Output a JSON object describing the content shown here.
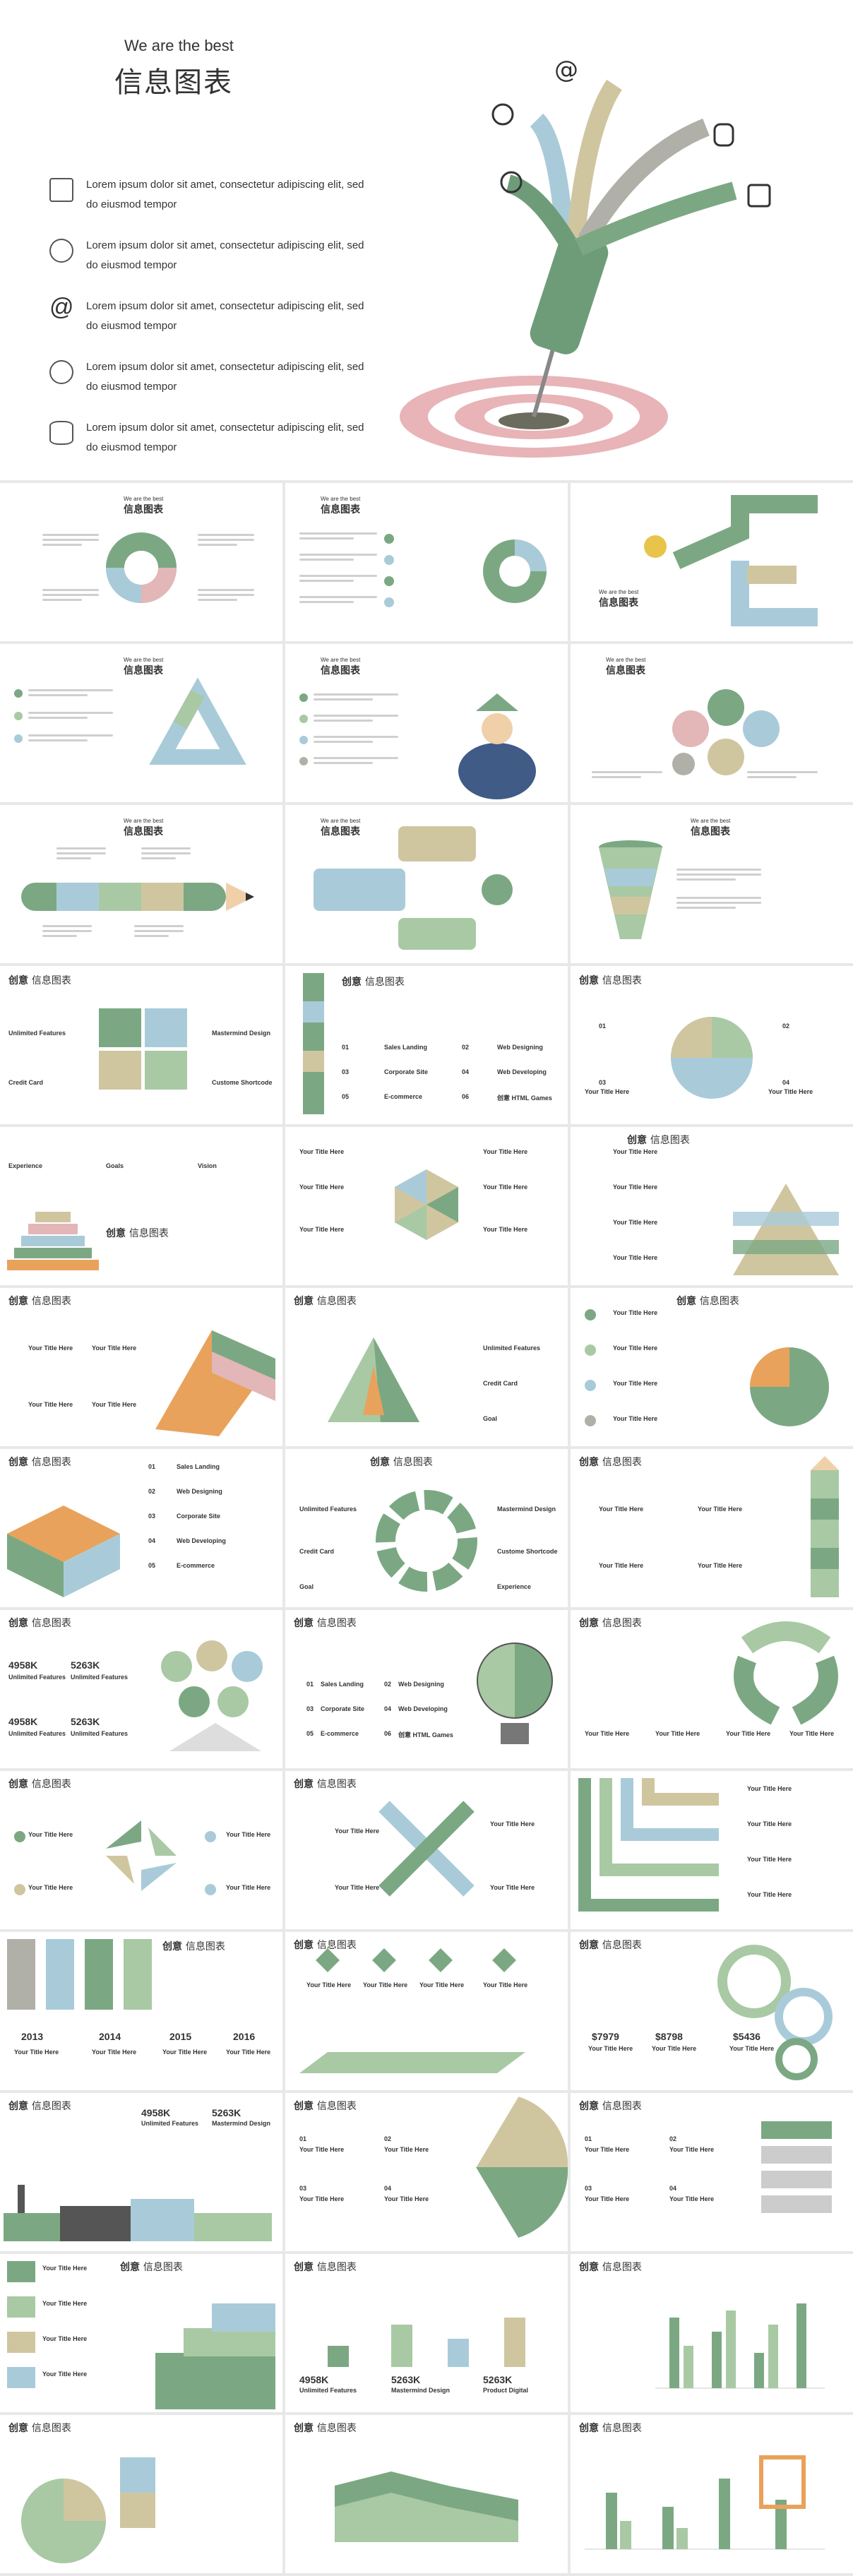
{
  "hero": {
    "subtitle": "We are the best",
    "title": "信息图表",
    "items": [
      {
        "icon": "rss-icon",
        "text": "Lorem ipsum dolor sit amet, consectetur adipiscing elit, sed do eiusmod tempor"
      },
      {
        "icon": "signal-icon",
        "text": "Lorem ipsum dolor sit amet, consectetur adipiscing elit, sed do eiusmod tempor"
      },
      {
        "icon": "at-icon",
        "text": "Lorem ipsum dolor sit amet, consectetur adipiscing elit, sed do eiusmod tempor"
      },
      {
        "icon": "globe-icon",
        "text": "Lorem ipsum dolor sit amet, consectetur adipiscing elit, sed do eiusmod tempor"
      },
      {
        "icon": "database-icon",
        "text": "Lorem ipsum dolor sit amet, consectetur adipiscing elit, sed do eiusmod tempor"
      }
    ]
  },
  "header": {
    "en": "We are the best",
    "cn": "信息图表",
    "cn_bold": "创意",
    "cn_rest": "信息图表"
  },
  "labels": {
    "unlimited": "Unlimited Features",
    "mastermind": "Mastermind Design",
    "credit": "Credit Card",
    "custom": "Custome Shortcode",
    "goal": "Goal",
    "experience": "Experience",
    "goals": "Goals",
    "vision": "Vision",
    "your_title": "Your Title Here",
    "sales": "Sales Landing",
    "web_design": "Web Designing",
    "corporate": "Corporate Site",
    "web_dev": "Web Developing",
    "ecommerce": "E-commerce",
    "html": "创意 HTML Games",
    "product": "Product Digital",
    "n01": "01",
    "n02": "02",
    "n03": "03",
    "n04": "04",
    "n05": "05",
    "n06": "06"
  },
  "stats": {
    "a": "4958K",
    "b": "5263K",
    "p1": "$7979",
    "p2": "$8798",
    "p3": "$5436",
    "y1": "2013",
    "y2": "2014",
    "y3": "2015",
    "y4": "2016"
  },
  "colors": {
    "green": "#7ba883",
    "lightgreen": "#a8c9a4",
    "blue": "#a9cbd9",
    "pink": "#e3b6b7",
    "sand": "#cfc6a0",
    "gray": "#b0b0a8",
    "orange": "#e8a25b"
  }
}
